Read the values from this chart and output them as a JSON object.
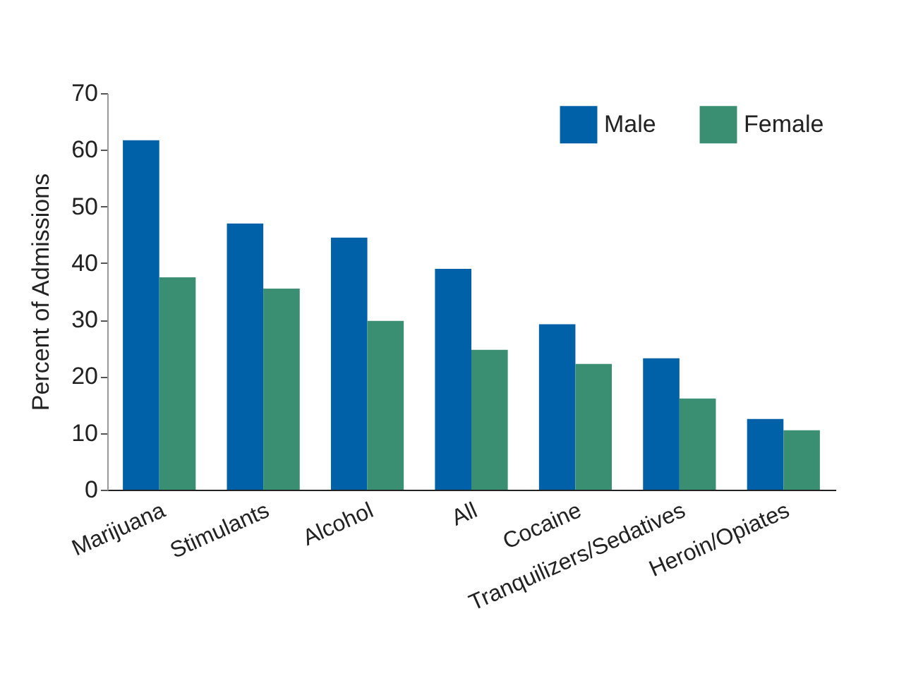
{
  "chart_data": {
    "type": "bar",
    "ylabel": "Percent of Admissions",
    "categories": [
      "Marijuana",
      "Stimulants",
      "Alcohol",
      "All",
      "Cocaine",
      "Tranquilizers/Sedatives",
      "Heroin/Opiates"
    ],
    "series": [
      {
        "name": "Male",
        "color": "#0060a8",
        "values": [
          61.7,
          47.0,
          44.5,
          39.0,
          29.2,
          23.2,
          12.5
        ]
      },
      {
        "name": "Female",
        "color": "#3a8f72",
        "values": [
          37.5,
          35.5,
          29.8,
          24.7,
          22.2,
          16.1,
          10.5
        ]
      }
    ],
    "ylim": [
      0,
      70
    ],
    "yticks": [
      0,
      10,
      20,
      30,
      40,
      50,
      60,
      70
    ],
    "grid": false,
    "legend": "top right"
  }
}
